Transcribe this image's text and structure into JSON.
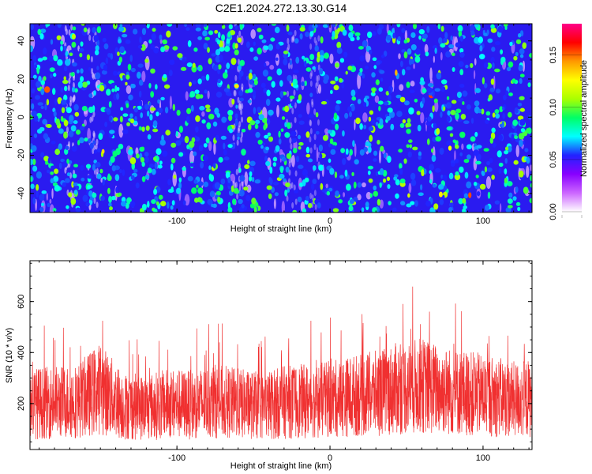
{
  "title": "C2E1.2024.272.13.30.G14",
  "chart_data": [
    {
      "type": "heatmap",
      "xlabel": "Height of straight line (km)",
      "ylabel": "Frequency (Hz)",
      "xlim": [
        -196,
        132
      ],
      "ylim": [
        -50,
        49
      ],
      "xticks": [
        -100,
        0,
        100
      ],
      "yticks": [
        -40,
        -20,
        0,
        20,
        40
      ],
      "colorbar": {
        "label": "Normalized spectral amplitude",
        "range": [
          0,
          0.18
        ],
        "ticks": [
          "0.00",
          "0.05",
          "0.10",
          "0.15"
        ],
        "colors": [
          "#ffffff",
          "#cc66ff",
          "#8800ff",
          "#2222ff",
          "#00ffff",
          "#00ff66",
          "#aaff00",
          "#ffff00",
          "#ff9900",
          "#ff0000",
          "#ff0088"
        ]
      }
    },
    {
      "type": "line",
      "xlabel": "Height of straight line (km)",
      "ylabel": "SNR (10 * v/v)",
      "xlim": [
        -196,
        132
      ],
      "ylim": [
        20,
        760
      ],
      "xticks": [
        -100,
        0,
        100
      ],
      "yticks": [
        200,
        400,
        600
      ],
      "series_color": "#f03030",
      "x": [
        -196,
        -180,
        -165,
        -150,
        -135,
        -120,
        -105,
        -90,
        -75,
        -60,
        -45,
        -30,
        -15,
        0,
        15,
        30,
        45,
        60,
        75,
        90,
        105,
        120,
        132
      ],
      "y": [
        200,
        205,
        210,
        260,
        190,
        185,
        200,
        195,
        210,
        200,
        190,
        205,
        210,
        215,
        230,
        240,
        260,
        270,
        250,
        240,
        230,
        215,
        220
      ]
    }
  ]
}
